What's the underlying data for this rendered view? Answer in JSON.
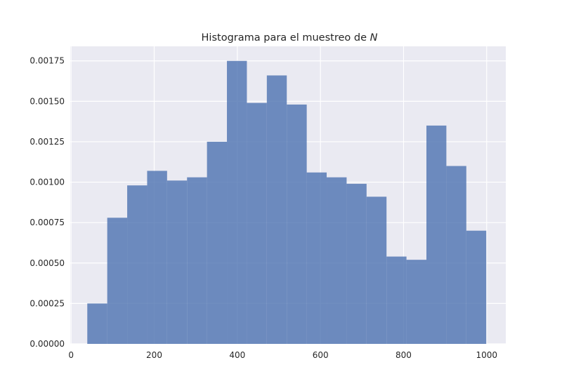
{
  "chart_data": {
    "type": "bar",
    "title": "Histograma para el muestreo de",
    "title_var": "N",
    "xlabel": "",
    "ylabel": "",
    "xlim": [
      -2,
      1046
    ],
    "ylim": [
      0,
      0.00184
    ],
    "xticks": [
      {
        "value": 0,
        "label": "0"
      },
      {
        "value": 200,
        "label": "200"
      },
      {
        "value": 400,
        "label": "400"
      },
      {
        "value": 600,
        "label": "600"
      },
      {
        "value": 800,
        "label": "800"
      },
      {
        "value": 1000,
        "label": "1000"
      }
    ],
    "yticks": [
      {
        "value": 0,
        "label": "0.00000"
      },
      {
        "value": 0.00025,
        "label": "0.00025"
      },
      {
        "value": 0.0005,
        "label": "0.00050"
      },
      {
        "value": 0.00075,
        "label": "0.00075"
      },
      {
        "value": 0.001,
        "label": "0.00100"
      },
      {
        "value": 0.00125,
        "label": "0.00125"
      },
      {
        "value": 0.0015,
        "label": "0.00150"
      },
      {
        "value": 0.00175,
        "label": "0.00175"
      }
    ],
    "bin_edges": [
      39,
      87,
      135,
      183,
      231,
      279,
      327,
      375,
      423,
      471,
      519,
      567,
      615,
      663,
      711,
      759,
      807,
      855,
      903,
      951,
      999
    ],
    "values": [
      0.00025,
      0.00078,
      0.00098,
      0.00107,
      0.00101,
      0.00103,
      0.00125,
      0.00175,
      0.00149,
      0.00166,
      0.00148,
      0.00106,
      0.00103,
      0.00099,
      0.00091,
      0.00054,
      0.00052,
      0.00135,
      0.0011,
      0.0007
    ],
    "grid": true,
    "style": "seaborn-darkgrid",
    "colors": {
      "bar": "#4c72b0",
      "bar_opacity": 0.8,
      "axes_background": "#eaeaf2",
      "grid": "#ffffff",
      "text": "#262626"
    }
  }
}
